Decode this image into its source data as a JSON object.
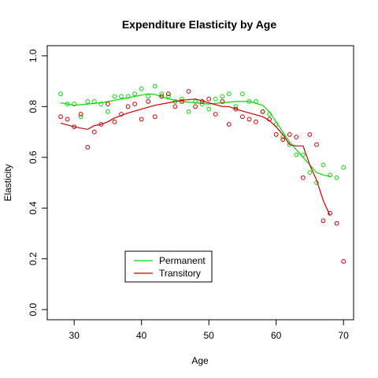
{
  "chart_data": {
    "type": "scatter",
    "title": "Expenditure Elasticity by Age",
    "xlabel": "Age",
    "ylabel": "Elasticity",
    "xlim": [
      26,
      71.5
    ],
    "ylim": [
      -0.04,
      1.04
    ],
    "xticks": [
      30,
      40,
      50,
      60,
      70
    ],
    "yticks": [
      0.0,
      0.2,
      0.4,
      0.6,
      0.8,
      1.0
    ],
    "xtick_labels": [
      "30",
      "40",
      "50",
      "60",
      "70"
    ],
    "ytick_labels": [
      "0.0",
      "0.2",
      "0.4",
      "0.6",
      "0.8",
      "1.0"
    ],
    "grid": false,
    "legend_position": "bottom-left",
    "series": [
      {
        "name": "Permanent",
        "color": "#00dd00",
        "points": [
          [
            28,
            0.85
          ],
          [
            29,
            0.81
          ],
          [
            30,
            0.81
          ],
          [
            31,
            0.76
          ],
          [
            32,
            0.82
          ],
          [
            33,
            0.82
          ],
          [
            34,
            0.81
          ],
          [
            35,
            0.78
          ],
          [
            36,
            0.84
          ],
          [
            37,
            0.84
          ],
          [
            38,
            0.84
          ],
          [
            39,
            0.85
          ],
          [
            40,
            0.87
          ],
          [
            41,
            0.84
          ],
          [
            42,
            0.88
          ],
          [
            43,
            0.85
          ],
          [
            44,
            0.84
          ],
          [
            45,
            0.82
          ],
          [
            46,
            0.83
          ],
          [
            47,
            0.78
          ],
          [
            48,
            0.82
          ],
          [
            49,
            0.81
          ],
          [
            50,
            0.79
          ],
          [
            51,
            0.83
          ],
          [
            52,
            0.84
          ],
          [
            53,
            0.85
          ],
          [
            54,
            0.8
          ],
          [
            55,
            0.85
          ],
          [
            56,
            0.82
          ],
          [
            57,
            0.82
          ],
          [
            58,
            0.78
          ],
          [
            59,
            0.77
          ],
          [
            60,
            0.73
          ],
          [
            61,
            0.68
          ],
          [
            62,
            0.65
          ],
          [
            63,
            0.61
          ],
          [
            64,
            0.61
          ],
          [
            65,
            0.54
          ],
          [
            66,
            0.5
          ],
          [
            67,
            0.57
          ],
          [
            68,
            0.53
          ],
          [
            69,
            0.52
          ],
          [
            70,
            0.56
          ]
        ],
        "line": [
          [
            28,
            0.815
          ],
          [
            30,
            0.805
          ],
          [
            32,
            0.81
          ],
          [
            34,
            0.815
          ],
          [
            36,
            0.825
          ],
          [
            38,
            0.835
          ],
          [
            40,
            0.845
          ],
          [
            41,
            0.85
          ],
          [
            42,
            0.848
          ],
          [
            44,
            0.83
          ],
          [
            46,
            0.82
          ],
          [
            48,
            0.815
          ],
          [
            50,
            0.81
          ],
          [
            52,
            0.815
          ],
          [
            54,
            0.82
          ],
          [
            56,
            0.82
          ],
          [
            58,
            0.805
          ],
          [
            59,
            0.78
          ],
          [
            60,
            0.74
          ],
          [
            61,
            0.7
          ],
          [
            62,
            0.66
          ],
          [
            63,
            0.63
          ],
          [
            64,
            0.6
          ],
          [
            65,
            0.57
          ],
          [
            66,
            0.54
          ],
          [
            67,
            0.53
          ],
          [
            68,
            0.525
          ]
        ]
      },
      {
        "name": "Transitory",
        "color": "#cc0000",
        "points": [
          [
            28,
            0.76
          ],
          [
            29,
            0.75
          ],
          [
            30,
            0.72
          ],
          [
            31,
            0.77
          ],
          [
            32,
            0.64
          ],
          [
            33,
            0.7
          ],
          [
            34,
            0.73
          ],
          [
            35,
            0.81
          ],
          [
            36,
            0.74
          ],
          [
            37,
            0.77
          ],
          [
            38,
            0.8
          ],
          [
            39,
            0.81
          ],
          [
            40,
            0.75
          ],
          [
            41,
            0.82
          ],
          [
            42,
            0.76
          ],
          [
            43,
            0.84
          ],
          [
            44,
            0.85
          ],
          [
            45,
            0.8
          ],
          [
            46,
            0.82
          ],
          [
            47,
            0.86
          ],
          [
            48,
            0.8
          ],
          [
            49,
            0.82
          ],
          [
            50,
            0.83
          ],
          [
            51,
            0.77
          ],
          [
            52,
            0.82
          ],
          [
            53,
            0.73
          ],
          [
            54,
            0.79
          ],
          [
            55,
            0.76
          ],
          [
            56,
            0.75
          ],
          [
            57,
            0.74
          ],
          [
            58,
            0.78
          ],
          [
            59,
            0.75
          ],
          [
            60,
            0.69
          ],
          [
            61,
            0.67
          ],
          [
            62,
            0.69
          ],
          [
            63,
            0.68
          ],
          [
            64,
            0.52
          ],
          [
            65,
            0.69
          ],
          [
            66,
            0.65
          ],
          [
            67,
            0.35
          ],
          [
            68,
            0.38
          ],
          [
            69,
            0.34
          ],
          [
            70,
            0.19
          ]
        ],
        "line": [
          [
            28,
            0.735
          ],
          [
            30,
            0.72
          ],
          [
            32,
            0.71
          ],
          [
            33,
            0.725
          ],
          [
            34,
            0.73
          ],
          [
            35,
            0.74
          ],
          [
            36,
            0.755
          ],
          [
            38,
            0.775
          ],
          [
            40,
            0.79
          ],
          [
            42,
            0.805
          ],
          [
            44,
            0.815
          ],
          [
            46,
            0.825
          ],
          [
            48,
            0.83
          ],
          [
            50,
            0.815
          ],
          [
            52,
            0.8
          ],
          [
            53,
            0.8
          ],
          [
            54,
            0.79
          ],
          [
            56,
            0.775
          ],
          [
            58,
            0.76
          ],
          [
            59,
            0.745
          ],
          [
            60,
            0.72
          ],
          [
            61,
            0.69
          ],
          [
            62,
            0.65
          ],
          [
            63,
            0.645
          ],
          [
            64,
            0.645
          ],
          [
            65,
            0.57
          ],
          [
            66,
            0.51
          ],
          [
            67,
            0.43
          ],
          [
            68,
            0.37
          ]
        ]
      }
    ]
  }
}
